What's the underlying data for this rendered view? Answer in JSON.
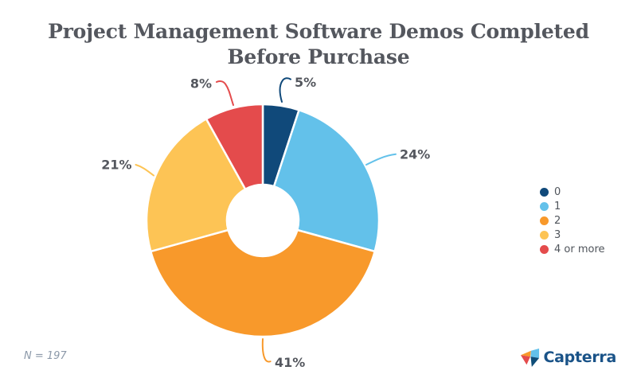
{
  "title": {
    "line1": "Project Management Software Demos Completed",
    "line2": "Before Purchase"
  },
  "footnote": "N = 197",
  "brand": {
    "name": "Capterra"
  },
  "colors": {
    "title_text": "#54575E",
    "label_text": "#54575E",
    "legend_text": "#4F545B",
    "footnote_text": "#8C99A9",
    "brand_text": "#1A5388",
    "background": "#FFFFFF"
  },
  "chart_data": {
    "type": "pie",
    "subtype": "donut",
    "title": "Project Management Software Demos Completed Before Purchase",
    "categories": [
      "0",
      "1",
      "2",
      "3",
      "4 or more"
    ],
    "values": [
      5,
      24,
      41,
      21,
      8
    ],
    "unit": "%",
    "labels": [
      "5%",
      "24%",
      "41%",
      "21%",
      "8%"
    ],
    "colors": [
      "#10497A",
      "#63C1EA",
      "#F8992B",
      "#FDC455",
      "#E44B4C"
    ],
    "legend_position": "right",
    "start_angle_deg": 0,
    "direction": "clockwise",
    "donut_hole_ratio": 0.31,
    "sample_size_note": "N = 197",
    "source_brand": "Capterra"
  }
}
